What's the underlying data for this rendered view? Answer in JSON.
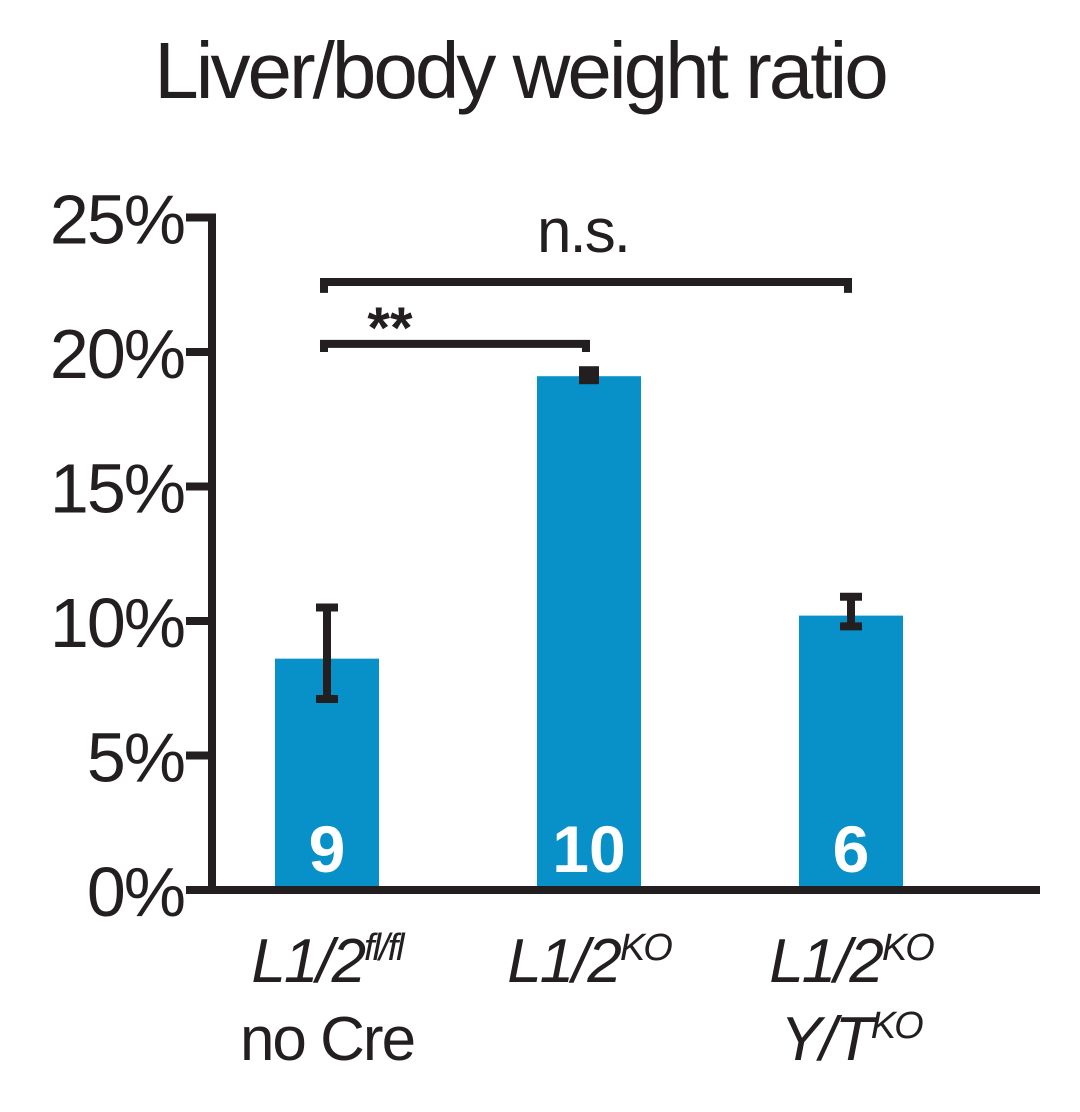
{
  "chart_data": {
    "type": "bar",
    "title": "Liver/body weight ratio",
    "xlabel": "",
    "ylabel": "",
    "ylim": [
      0,
      25
    ],
    "y_ticks": [
      "0%",
      "5%",
      "10%",
      "15%",
      "20%",
      "25%"
    ],
    "y_tick_values": [
      0,
      5,
      10,
      15,
      20,
      25
    ],
    "bar_color": "#0890c8",
    "axis_color": "#231f20",
    "categories": [
      {
        "line1_main": "L1/2",
        "line1_sup": "fl/fl",
        "line2_main": "no Cre",
        "line2_sup": "",
        "line2_italic": false
      },
      {
        "line1_main": "L1/2",
        "line1_sup": "KO",
        "line2_main": "",
        "line2_sup": "",
        "line2_italic": false
      },
      {
        "line1_main": "L1/2",
        "line1_sup": "KO",
        "line2_main": "Y/T",
        "line2_sup": "KO",
        "line2_italic": true
      }
    ],
    "values": [
      8.6,
      19.1,
      10.2
    ],
    "error_low": [
      7.1,
      19.1,
      9.8
    ],
    "error_high": [
      10.5,
      19.1,
      10.9
    ],
    "n_labels": [
      "9",
      "10",
      "6"
    ],
    "comparisons": [
      {
        "from": 0,
        "to": 1,
        "label": "**",
        "y": 20.3,
        "tick": 20.0
      },
      {
        "from": 0,
        "to": 2,
        "label": "n.s.",
        "y": 22.6,
        "tick": 22.2
      }
    ]
  }
}
